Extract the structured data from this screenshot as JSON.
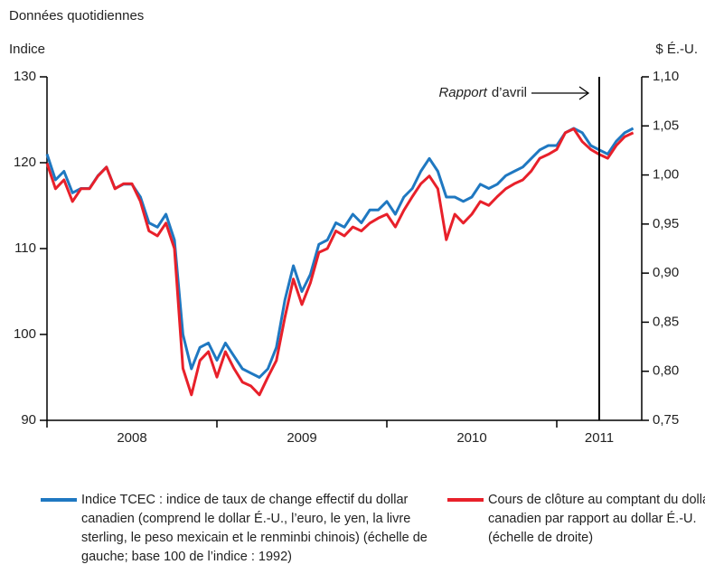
{
  "chart_data": {
    "type": "line",
    "subtitle": "Données quotidiennes",
    "ylabel": "Indice",
    "y2label": "$ É.-U.",
    "x": [
      2008.0,
      2008.05,
      2008.1,
      2008.15,
      2008.2,
      2008.25,
      2008.3,
      2008.35,
      2008.4,
      2008.45,
      2008.5,
      2008.55,
      2008.6,
      2008.65,
      2008.7,
      2008.75,
      2008.8,
      2008.85,
      2008.9,
      2008.95,
      2009.0,
      2009.05,
      2009.1,
      2009.15,
      2009.2,
      2009.25,
      2009.3,
      2009.35,
      2009.4,
      2009.45,
      2009.5,
      2009.55,
      2009.6,
      2009.65,
      2009.7,
      2009.75,
      2009.8,
      2009.85,
      2009.9,
      2009.95,
      2010.0,
      2010.05,
      2010.1,
      2010.15,
      2010.2,
      2010.25,
      2010.3,
      2010.35,
      2010.4,
      2010.45,
      2010.5,
      2010.55,
      2010.6,
      2010.65,
      2010.7,
      2010.75,
      2010.8,
      2010.85,
      2010.9,
      2010.95,
      2011.0,
      2011.05,
      2011.1,
      2011.15,
      2011.2,
      2011.25,
      2011.3,
      2011.35,
      2011.4,
      2011.45
    ],
    "xlim": [
      2008,
      2011.5
    ],
    "xticks": [
      2008,
      2009,
      2010,
      2011
    ],
    "ylim": [
      90,
      130
    ],
    "yticks": [
      90,
      100,
      110,
      120,
      130
    ],
    "y2lim": [
      0.75,
      1.1
    ],
    "y2ticks": [
      {
        "value": 0.75,
        "label": "0,75"
      },
      {
        "value": 0.8,
        "label": "0,80"
      },
      {
        "value": 0.85,
        "label": "0,85"
      },
      {
        "value": 0.9,
        "label": "0,90"
      },
      {
        "value": 0.95,
        "label": "0,95"
      },
      {
        "value": 1.0,
        "label": "1,00"
      },
      {
        "value": 1.05,
        "label": "1,05"
      },
      {
        "value": 1.1,
        "label": "1,10"
      }
    ],
    "series": [
      {
        "name": "Indice TCEC : indice de taux de change effectif du dollar canadien (comprend le dollar É.-U., l’euro, le yen, la livre sterling, le peso mexicain et le renminbi chinois) (échelle de gauche; base 100 de l’indice : 1992)",
        "color": "#1f78c1",
        "axis": "y",
        "values": [
          121,
          118,
          119,
          116.5,
          117,
          117,
          118.5,
          119.5,
          117,
          117.5,
          117.5,
          116,
          113,
          112.5,
          114,
          111,
          100,
          96,
          98.5,
          99,
          97,
          99,
          97.5,
          96,
          95.5,
          95,
          96,
          98.5,
          104,
          108,
          105,
          107,
          110.5,
          111,
          113,
          112.5,
          114,
          113,
          114.5,
          114.5,
          115.5,
          114,
          116,
          117,
          119,
          120.5,
          119,
          116,
          116,
          115.5,
          116,
          117.5,
          117,
          117.5,
          118.5,
          119,
          119.5,
          120.5,
          121.5,
          122,
          122,
          123.5,
          124,
          123.5,
          122,
          121.5,
          121,
          122.5,
          123.5,
          124
        ]
      },
      {
        "name": "Cours de clôture au comptant du dollar canadien par rapport au dollar É.-U. (échelle de droite)",
        "color": "#e8202a",
        "axis": "y2",
        "values": [
          1.012,
          0.986,
          0.995,
          0.973,
          0.986,
          0.986,
          0.999,
          1.008,
          0.986,
          0.991,
          0.991,
          0.973,
          0.943,
          0.938,
          0.951,
          0.925,
          0.803,
          0.776,
          0.811,
          0.82,
          0.794,
          0.82,
          0.803,
          0.789,
          0.785,
          0.776,
          0.794,
          0.811,
          0.855,
          0.894,
          0.868,
          0.89,
          0.921,
          0.925,
          0.943,
          0.938,
          0.947,
          0.943,
          0.951,
          0.956,
          0.96,
          0.947,
          0.964,
          0.978,
          0.991,
          0.999,
          0.986,
          0.934,
          0.96,
          0.951,
          0.96,
          0.973,
          0.969,
          0.978,
          0.986,
          0.991,
          0.995,
          1.004,
          1.017,
          1.021,
          1.026,
          1.043,
          1.047,
          1.034,
          1.026,
          1.021,
          1.017,
          1.03,
          1.039,
          1.043
        ]
      }
    ],
    "annotation": {
      "x": 2011.25,
      "text_italic": "Rapport",
      "text": "d’avril"
    }
  }
}
